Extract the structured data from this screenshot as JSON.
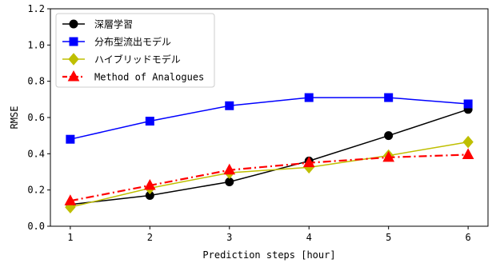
{
  "chart_data": {
    "type": "line",
    "xlabel": "Prediction steps [hour]",
    "ylabel": "RMSE",
    "x": [
      1,
      2,
      3,
      4,
      5,
      6
    ],
    "xlim": [
      0.75,
      6.25
    ],
    "ylim": [
      0.0,
      1.2
    ],
    "yticks": [
      "0.0",
      "0.2",
      "0.4",
      "0.6",
      "0.8",
      "1.0",
      "1.2"
    ],
    "xticks": [
      "1",
      "2",
      "3",
      "4",
      "5",
      "6"
    ],
    "grid": false,
    "legend_position": "top-left",
    "series": [
      {
        "name": "深層学習",
        "color": "#000000",
        "marker": "circle",
        "linestyle": "solid",
        "values": [
          0.12,
          0.17,
          0.245,
          0.36,
          0.5,
          0.645
        ]
      },
      {
        "name": "分布型流出モデル",
        "color": "#0000ff",
        "marker": "square",
        "linestyle": "solid",
        "values": [
          0.48,
          0.58,
          0.665,
          0.71,
          0.71,
          0.675
        ]
      },
      {
        "name": "ハイブリッドモデル",
        "color": "#bfbf00",
        "marker": "diamond",
        "linestyle": "solid",
        "values": [
          0.105,
          0.21,
          0.295,
          0.325,
          0.39,
          0.465
        ]
      },
      {
        "name": "Method of Analogues",
        "color": "#ff0000",
        "marker": "triangle",
        "linestyle": "dashdot",
        "values": [
          0.14,
          0.225,
          0.31,
          0.35,
          0.38,
          0.395
        ]
      }
    ]
  }
}
